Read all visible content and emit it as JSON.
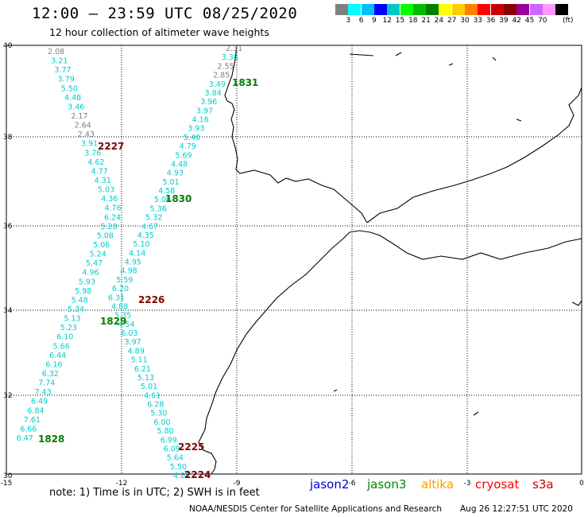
{
  "header": {
    "title": "12:00 – 23:59 UTC 08/25/2020",
    "subtitle": "12 hour collection of altimeter wave heights"
  },
  "legend": {
    "unit": "(ft)",
    "swatches": [
      {
        "color": "#808080",
        "label": ""
      },
      {
        "color": "#00ffff",
        "label": "3"
      },
      {
        "color": "#00bfff",
        "label": "6"
      },
      {
        "color": "#0000ff",
        "label": "9"
      },
      {
        "color": "#00c8c8",
        "label": "12"
      },
      {
        "color": "#00ff00",
        "label": "15"
      },
      {
        "color": "#00bb00",
        "label": "18"
      },
      {
        "color": "#008000",
        "label": "21"
      },
      {
        "color": "#ffff00",
        "label": "24"
      },
      {
        "color": "#ffcc00",
        "label": "27"
      },
      {
        "color": "#ff8000",
        "label": "30"
      },
      {
        "color": "#ff0000",
        "label": "33"
      },
      {
        "color": "#cc0000",
        "label": "36"
      },
      {
        "color": "#8b0000",
        "label": "39"
      },
      {
        "color": "#990099",
        "label": "42"
      },
      {
        "color": "#cc66ff",
        "label": "45"
      },
      {
        "color": "#ff99ff",
        "label": "70"
      },
      {
        "color": "#000000",
        "label": ""
      }
    ]
  },
  "axes": {
    "lon_ticks": [
      "-15",
      "-12",
      "-9",
      "-6",
      "-3",
      "0"
    ],
    "lat_ticks": [
      "40",
      "38",
      "36",
      "34",
      "32",
      "30"
    ]
  },
  "tracks": [
    {
      "time": "2227",
      "color": "#800000",
      "points": [
        "2.08",
        "3.21",
        "3.77",
        "3.79",
        "5.50",
        "4.48",
        "3.46",
        "2.17",
        "2.64",
        "2.43",
        "3.91",
        "3.76",
        "4.62",
        "4.77",
        "4.31",
        "5.03",
        "4.36",
        "4.76",
        "6.24",
        "5.28",
        "5.08",
        "5.06",
        "5.24",
        "5.47",
        "4.96",
        "5.93",
        "5.98",
        "5.48",
        "5.34",
        "5.13",
        "5.23",
        "6.10",
        "5.66",
        "6.44",
        "6.16",
        "6.32",
        "7.74",
        "7.43",
        "6.49",
        "6.84",
        "7.61",
        "6.66",
        "6.47"
      ]
    },
    {
      "time": "1831",
      "color": "#008000",
      "points": [
        "2.31",
        "3.38",
        "2.55",
        "2.85",
        "3.49",
        "3.84",
        "3.96",
        "3.97",
        "4.16",
        "3.93",
        "5.40",
        "4.79",
        "5.69",
        "4.48",
        "4.93",
        "5.01",
        "4.58",
        "5.06",
        "5.36",
        "5.32",
        "4.67",
        "4.35",
        "5.10",
        "4.14",
        "4.95",
        "4.98",
        "5.59",
        "6.20",
        "6.31",
        "4.88",
        "5.35",
        "4.54",
        "6.03",
        "3.97",
        "4.89",
        "5.11",
        "6.21",
        "5.13",
        "5.01",
        "4.61",
        "6.28",
        "5.30",
        "6.00",
        "5.80",
        "6.99",
        "6.09",
        "5.64",
        "5.50",
        "4.85"
      ]
    },
    {
      "time": "1830",
      "color": "#008000"
    },
    {
      "time": "2226",
      "color": "#800000"
    },
    {
      "time": "1829",
      "color": "#008000"
    },
    {
      "time": "1828",
      "color": "#008000"
    },
    {
      "time": "2225",
      "color": "#800000"
    },
    {
      "time": "2224",
      "color": "#800000"
    }
  ],
  "footer": {
    "note1": "note: 1) Time is in UTC; 2) SWH is in feet",
    "satellites": [
      {
        "name": "jason2",
        "color": "#0000cc"
      },
      {
        "name": "jason3",
        "color": "#008800"
      },
      {
        "name": "altika",
        "color": "#ff9900"
      },
      {
        "name": "cryosat",
        "color": "#ff0000"
      },
      {
        "name": "s3a",
        "color": "#cc0000"
      }
    ],
    "credit": "NOAA/NESDIS Center for Satellite Applications and Research",
    "generated": "Aug 26 12:27:51 UTC 2020"
  }
}
